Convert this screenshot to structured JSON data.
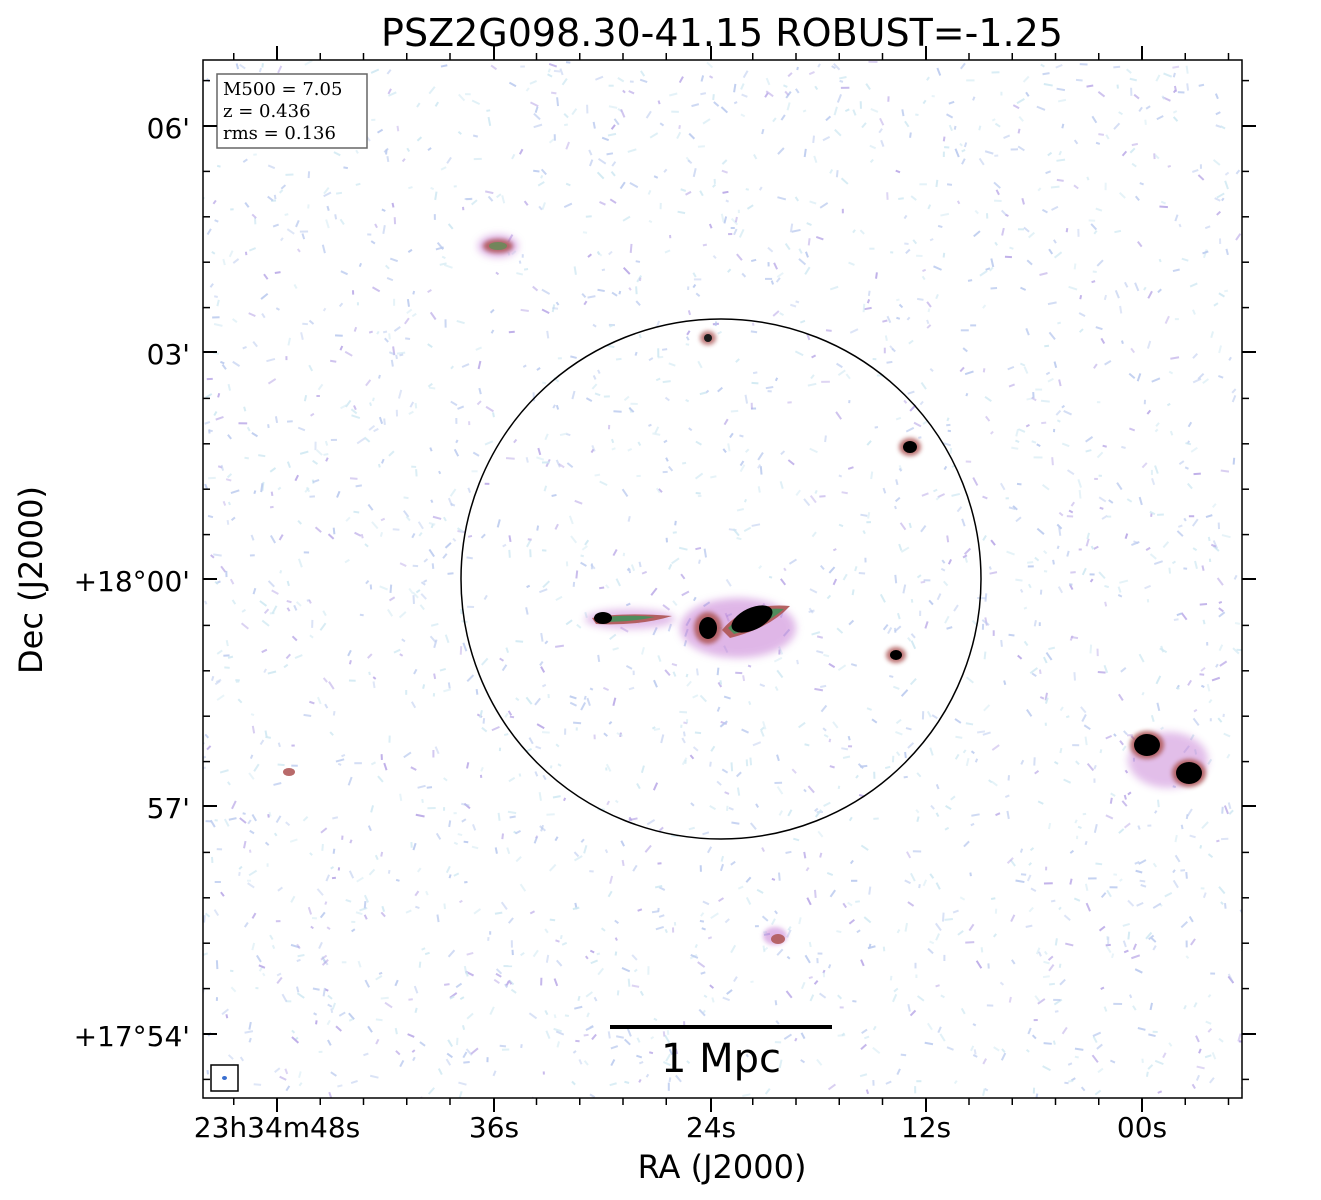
{
  "title": "PSZ2G098.30-41.15 ROBUST=-1.25",
  "info": {
    "m500": "M500 = 7.05",
    "z": "z = 0.436",
    "rms": "rms = 0.136"
  },
  "axes": {
    "xlabel": "RA (J2000)",
    "ylabel": "Dec (J2000)",
    "x_ticks": [
      "23h34m48s",
      "36s",
      "24s",
      "12s",
      "00s"
    ],
    "y_ticks": [
      "06'",
      "03'",
      "+18°00'",
      "57'",
      "+17°54'"
    ]
  },
  "scale_bar": {
    "label": "1 Mpc"
  },
  "colors": {
    "noise_blue": "#b9c9ee",
    "noise_cyan": "#cfe8f2",
    "noise_purple": "#b8a6e6",
    "source_core": "#000000",
    "source_green": "#4f8c5c",
    "source_red": "#b05a5a",
    "source_magenta": "#c070d0"
  }
}
